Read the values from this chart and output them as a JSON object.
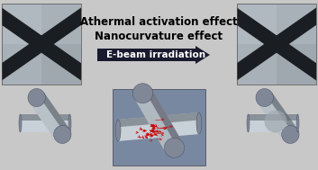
{
  "title": "",
  "text_line1": "Athermal activation effect",
  "text_line2": "Nanocurvature effect",
  "arrow_label": "E-beam irradiation",
  "bg_color": "#c8c8c8",
  "text_color": "#000000",
  "arrow_bg": "#1a1a2e",
  "arrow_text_color": "#ffffff",
  "sem_bg_light": "#b0b8c0",
  "sem_bg_dark": "#909aa0",
  "wire_color_light": "#d0d8e0",
  "wire_color_mid": "#909aa8",
  "wire_color_dark": "#505860",
  "nanowire_dark": "#202428",
  "red_arrow_color": "#cc0000",
  "layout": {
    "fig_width": 3.53,
    "fig_height": 1.89,
    "dpi": 100
  }
}
